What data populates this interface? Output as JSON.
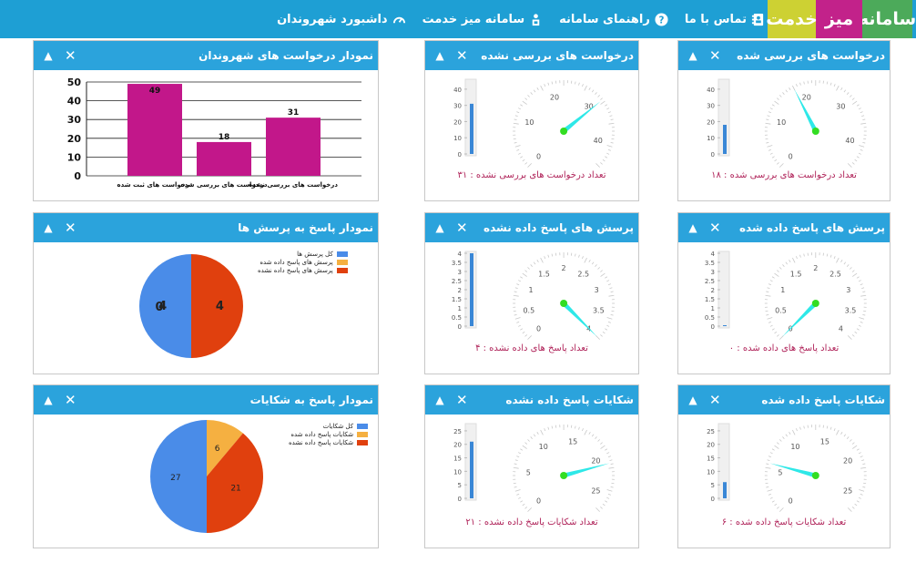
{
  "header": {
    "logo": {
      "word1": "سامانه",
      "word2": "میز",
      "word3": "خدمت",
      "color1": "#4caa5a",
      "color2": "#c2228a",
      "color3": "#cdd133"
    },
    "nav": [
      {
        "label": "داشبورد شهروندان",
        "icon": "dashboard-gauge-icon"
      },
      {
        "label": "سامانه میز خدمت",
        "icon": "service-desk-icon"
      },
      {
        "label": "راهنمای سامانه",
        "icon": "help-icon"
      },
      {
        "label": "تماس با ما",
        "icon": "contact-icon"
      }
    ]
  },
  "panels": {
    "requests_reviewed": {
      "title": "درخواست های بررسی شده",
      "caption": "تعداد درخواست های بررسی شده :  ۱۸",
      "value": 18,
      "scale": [
        0,
        10,
        20,
        30,
        40
      ],
      "max": 45,
      "bar_ticks": [
        "0",
        "10",
        "20",
        "30",
        "40"
      ]
    },
    "requests_unreviewed": {
      "title": "درخواست های بررسی نشده",
      "caption": "تعداد درخواست های بررسی نشده :  ۳۱",
      "value": 31,
      "scale": [
        0,
        10,
        20,
        30,
        40
      ],
      "max": 45,
      "bar_ticks": [
        "0",
        "10",
        "20",
        "30",
        "40"
      ]
    },
    "citizen_requests_chart": {
      "title": "نمودار درخواست های شهروندان"
    },
    "questions_answered": {
      "title": "پرسش های پاسخ داده شده",
      "caption": "تعداد پاسخ های داده شده :  ۰",
      "value": 0,
      "scale": [
        0,
        0.5,
        1,
        1.5,
        2,
        2.5,
        3,
        3.5,
        4
      ],
      "max": 4,
      "bar_ticks": [
        "0",
        "0.5",
        "1",
        "1.5",
        "2",
        "2.5",
        "3",
        "3.5",
        "4"
      ]
    },
    "questions_unanswered": {
      "title": "پرسش های پاسخ داده نشده",
      "caption": "تعداد پاسخ های داده نشده :  ۴",
      "value": 4,
      "scale": [
        0,
        0.5,
        1,
        1.5,
        2,
        2.5,
        3,
        3.5,
        4
      ],
      "max": 4,
      "bar_ticks": [
        "0",
        "0.5",
        "1",
        "1.5",
        "2",
        "2.5",
        "3",
        "3.5",
        "4"
      ]
    },
    "questions_chart": {
      "title": "نمودار پاسخ به پرسش ها"
    },
    "complaints_answered": {
      "title": "شکایات پاسخ داده شده",
      "caption": "تعداد شکایات پاسخ داده شده :  ۶",
      "value": 6,
      "scale": [
        0,
        5,
        10,
        15,
        20,
        25
      ],
      "max": 27,
      "bar_ticks": [
        "0",
        "5",
        "10",
        "15",
        "20",
        "25"
      ]
    },
    "complaints_unanswered": {
      "title": "شکایات پاسخ داده نشده",
      "caption": "تعداد شکایات پاسخ داده نشده :  ۲۱",
      "value": 21,
      "scale": [
        0,
        5,
        10,
        15,
        20,
        25
      ],
      "max": 27,
      "bar_ticks": [
        "0",
        "5",
        "10",
        "15",
        "20",
        "25"
      ]
    },
    "complaints_chart": {
      "title": "نمودار پاسخ به شکایات"
    }
  },
  "controls": {
    "collapse": "▲",
    "close": "✕"
  },
  "chart_data": [
    {
      "type": "bar",
      "categories": [
        "درخواست های ثبت شده",
        "درخواست های بررسی شده",
        "درخواست های بررسی نشده"
      ],
      "values": [
        49,
        18,
        31
      ],
      "ylim": [
        0,
        50
      ],
      "yticks": [
        0,
        10,
        20,
        30,
        40,
        50
      ],
      "color": "#c2178a",
      "title": ""
    },
    {
      "type": "pie",
      "labels": [
        "کل پرسش ها",
        "پرسش های پاسخ داده شده",
        "پرسش های پاسخ داده نشده"
      ],
      "values": [
        4,
        0,
        4
      ],
      "colors": [
        "#4a8ce8",
        "#f5b041",
        "#e0400e"
      ],
      "legend": "top-right",
      "title": ""
    },
    {
      "type": "pie",
      "labels": [
        "کل شکایات",
        "شکایات پاسخ داده شده",
        "شکایات پاسخ داده نشده"
      ],
      "values": [
        27,
        6,
        21
      ],
      "colors": [
        "#4a8ce8",
        "#f5b041",
        "#e0400e"
      ],
      "legend": "top-right",
      "title": ""
    }
  ]
}
